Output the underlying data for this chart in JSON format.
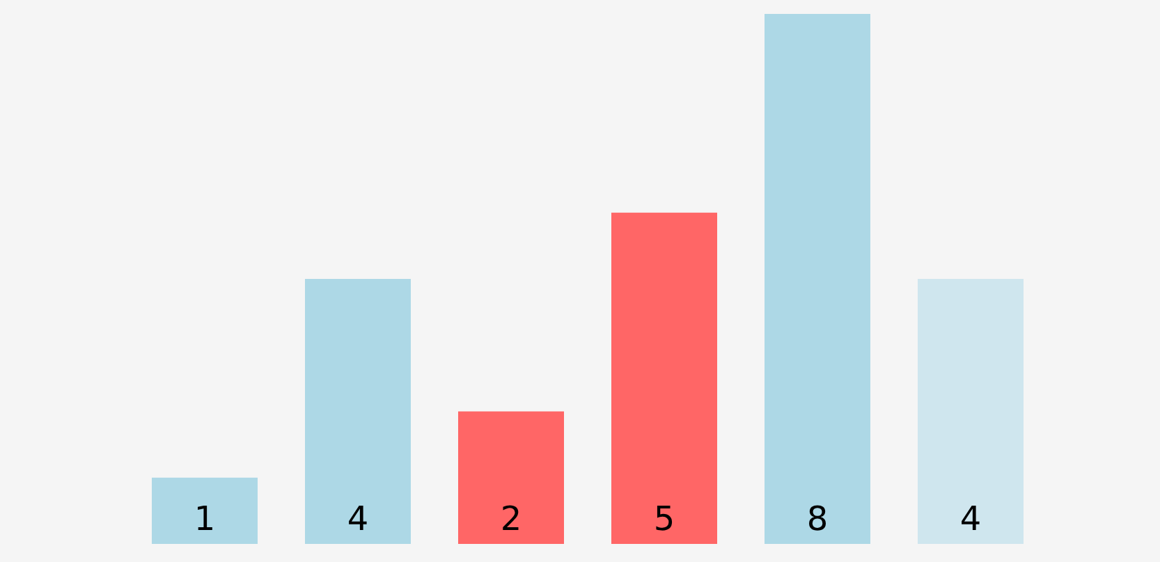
{
  "chart_data": {
    "type": "bar",
    "categories": [
      null,
      null,
      null,
      null,
      null,
      null
    ],
    "values": [
      1,
      4,
      2,
      5,
      8,
      4
    ],
    "colors": [
      "#add8e6",
      "#add8e6",
      "#ff6666",
      "#ff6666",
      "#add8e6",
      "#cfe6ee"
    ],
    "data_labels": true,
    "grid": false,
    "legend": false,
    "tick_labels": false,
    "ylim": [
      0,
      8
    ]
  }
}
